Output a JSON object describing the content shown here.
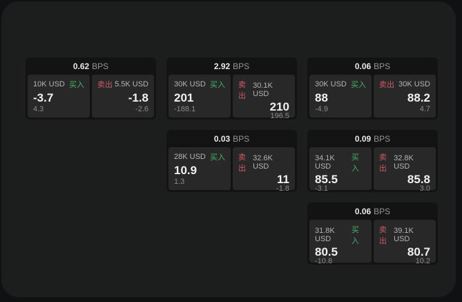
{
  "app": {
    "background": "#101112",
    "panel_background": "#1c1d1d",
    "card_background": "#131314",
    "pane_background": "#282829",
    "buy_color": "#45b365",
    "sell_color": "#cd5a64",
    "bps_unit": "BPS",
    "buy_label": "买入",
    "sell_label": "卖出"
  },
  "cards": [
    {
      "bps": "0.62",
      "bps_unit": "BPS",
      "buy": {
        "size": "10K USD",
        "side": "买入",
        "price": "-3.7",
        "delta": "4.3"
      },
      "sell": {
        "size": "5.5K USD",
        "side": "卖出",
        "price": "-1.8",
        "delta": "-2.6"
      }
    },
    {
      "bps": "2.92",
      "bps_unit": "BPS",
      "buy": {
        "size": "30K USD",
        "side": "买入",
        "price": "201",
        "delta": "-188.1"
      },
      "sell": {
        "size": "30.1K USD",
        "side": "卖出",
        "price": "210",
        "delta": "196.5"
      }
    },
    {
      "bps": "0.06",
      "bps_unit": "BPS",
      "buy": {
        "size": "30K USD",
        "side": "买入",
        "price": "88",
        "delta": "-4.9"
      },
      "sell": {
        "size": "30K USD",
        "side": "卖出",
        "price": "88.2",
        "delta": "4.7"
      }
    },
    {
      "bps": "0.03",
      "bps_unit": "BPS",
      "buy": {
        "size": "28K USD",
        "side": "买入",
        "price": "10.9",
        "delta": "1.3"
      },
      "sell": {
        "size": "32.6K USD",
        "side": "卖出",
        "price": "11",
        "delta": "-1.8"
      }
    },
    {
      "bps": "0.09",
      "bps_unit": "BPS",
      "buy": {
        "size": "34.1K USD",
        "side": "买入",
        "price": "85.5",
        "delta": "-3.1"
      },
      "sell": {
        "size": "32.8K USD",
        "side": "卖出",
        "price": "85.8",
        "delta": "3.0"
      }
    },
    {
      "bps": "0.06",
      "bps_unit": "BPS",
      "buy": {
        "size": "31.8K USD",
        "side": "买入",
        "price": "80.5",
        "delta": "-10.8"
      },
      "sell": {
        "size": "39.1K USD",
        "side": "卖出",
        "price": "80.7",
        "delta": "10.2"
      }
    }
  ]
}
